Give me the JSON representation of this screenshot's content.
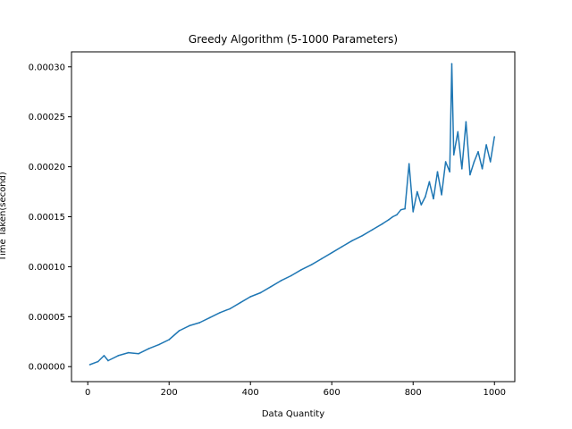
{
  "chart_data": {
    "type": "line",
    "title": "Greedy Algorithm (5-1000 Parameters)",
    "xlabel": "Data Quantity",
    "ylabel": "Time Taken(second)",
    "xlim": [
      -40,
      1050
    ],
    "ylim": [
      -1.5e-05,
      0.000315
    ],
    "xticks": [
      0,
      200,
      400,
      600,
      800,
      1000
    ],
    "xtick_labels": [
      "0",
      "200",
      "400",
      "600",
      "800",
      "1000"
    ],
    "yticks": [
      0.0,
      5e-05,
      0.0001,
      0.00015,
      0.0002,
      0.00025,
      0.0003
    ],
    "ytick_labels": [
      "0.00000",
      "0.00005",
      "0.00010",
      "0.00015",
      "0.00020",
      "0.00025",
      "0.00030"
    ],
    "grid": false,
    "series": [
      {
        "color": "#1f77b4",
        "x": [
          5,
          25,
          40,
          50,
          75,
          100,
          125,
          150,
          175,
          200,
          225,
          250,
          275,
          300,
          325,
          350,
          375,
          400,
          425,
          450,
          475,
          500,
          525,
          550,
          575,
          600,
          625,
          650,
          675,
          700,
          725,
          740,
          750,
          760,
          770,
          780,
          790,
          800,
          810,
          820,
          830,
          840,
          850,
          860,
          870,
          880,
          890,
          895,
          900,
          910,
          920,
          930,
          940,
          950,
          960,
          970,
          980,
          990,
          1000
        ],
        "y": [
          2e-06,
          5e-06,
          1.1e-05,
          6e-06,
          1.1e-05,
          1.4e-05,
          1.3e-05,
          1.8e-05,
          2.2e-05,
          2.7e-05,
          3.6e-05,
          4.1e-05,
          4.4e-05,
          4.9e-05,
          5.4e-05,
          5.8e-05,
          6.4e-05,
          7e-05,
          7.4e-05,
          8e-05,
          8.6e-05,
          9.1e-05,
          9.7e-05,
          0.000102,
          0.000108,
          0.000114,
          0.00012,
          0.000126,
          0.000131,
          0.000137,
          0.000143,
          0.000147,
          0.00015,
          0.000152,
          0.000157,
          0.000158,
          0.000203,
          0.000155,
          0.000175,
          0.000162,
          0.00017,
          0.000185,
          0.000168,
          0.000195,
          0.000172,
          0.000205,
          0.000195,
          0.000303,
          0.000212,
          0.000235,
          0.000198,
          0.000245,
          0.000192,
          0.000205,
          0.000215,
          0.000198,
          0.000222,
          0.000205,
          0.00023
        ]
      }
    ]
  }
}
